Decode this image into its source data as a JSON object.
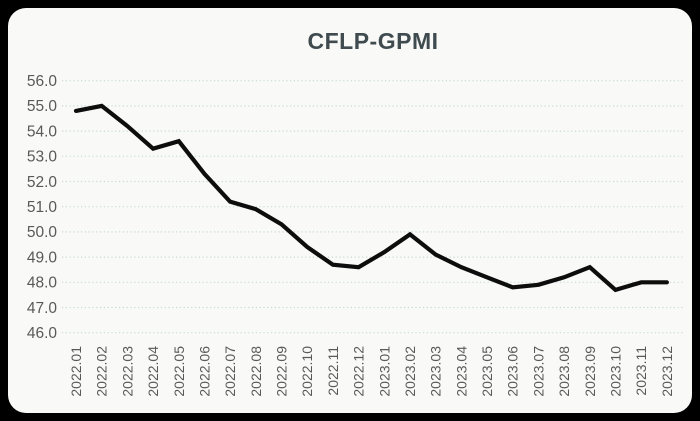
{
  "title": "CFLP-GPMI",
  "chart_data": {
    "type": "line",
    "title": "CFLP-GPMI",
    "categories": [
      "2022.01",
      "2022.02",
      "2022.03",
      "2022.04",
      "2022.05",
      "2022.06",
      "2022.07",
      "2022.08",
      "2022.09",
      "2022.10",
      "2022.11",
      "2022.12",
      "2023.01",
      "2023.02",
      "2023.03",
      "2023.04",
      "2023.05",
      "2023.06",
      "2023.07",
      "2023.08",
      "2023.09",
      "2023.10",
      "2023.11",
      "2023.12"
    ],
    "series": [
      {
        "name": "CFLP-GPMI",
        "values": [
          54.8,
          55.0,
          54.2,
          53.3,
          53.6,
          52.3,
          51.2,
          50.9,
          50.3,
          49.4,
          48.7,
          48.6,
          49.2,
          49.9,
          49.1,
          48.6,
          48.2,
          47.8,
          47.9,
          48.2,
          48.6,
          47.7,
          48.0,
          48.0
        ]
      }
    ],
    "xlabel": "",
    "ylabel": "",
    "ylim": [
      46.0,
      56.0
    ],
    "ytick_labels": [
      "56.0",
      "55.0",
      "54.0",
      "53.0",
      "52.0",
      "51.0",
      "50.0",
      "49.0",
      "48.0",
      "47.0",
      "46.0"
    ],
    "grid": "horizontal-dotted",
    "legend_position": "none",
    "colors": {
      "line": "#0d0d0d",
      "grid": "#c5dadb",
      "tick_label": "#595959",
      "title": "#3f4b4f",
      "card_background": "#f9f9f7",
      "frame_background": "#000000"
    }
  }
}
